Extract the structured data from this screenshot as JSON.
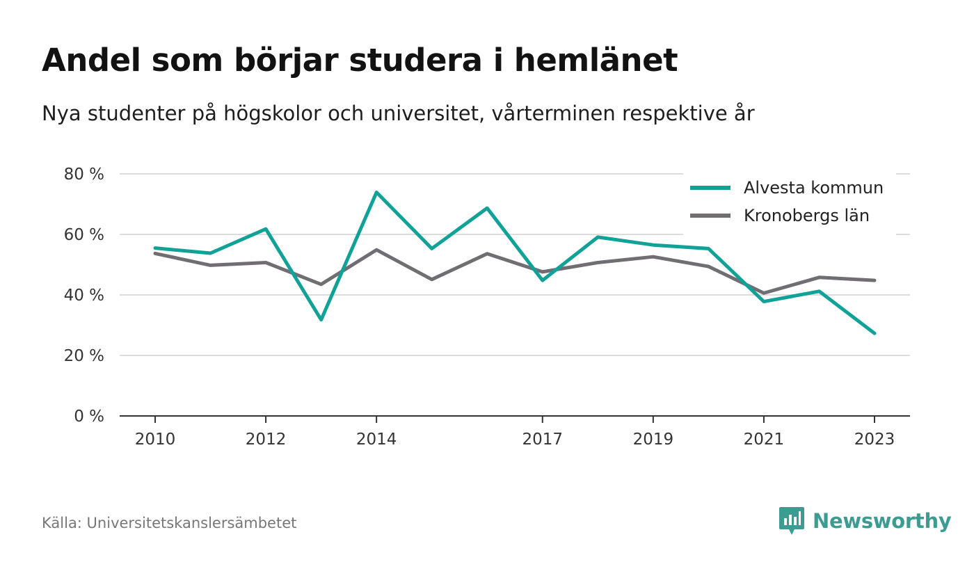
{
  "header": {
    "title": "Andel som börjar studera i hemlänet",
    "subtitle": "Nya studenter på högskolor och universitet, vårterminen respektive år"
  },
  "footer": {
    "source": "Källa: Universitetskanslersämbetet",
    "brand": "Newsworthy",
    "brand_icon": "bar-chart-bubble-icon",
    "brand_color": "#3c9c92"
  },
  "chart_data": {
    "type": "line",
    "x": [
      2010,
      2011,
      2012,
      2013,
      2014,
      2015,
      2016,
      2017,
      2018,
      2019,
      2020,
      2021,
      2022,
      2023
    ],
    "x_ticks": [
      2010,
      2012,
      2014,
      2017,
      2019,
      2021,
      2023
    ],
    "y_ticks": [
      0,
      20,
      40,
      60,
      80
    ],
    "y_tick_suffix": " %",
    "ylim": [
      0,
      80
    ],
    "grid": true,
    "legend_position": "top-right",
    "series": [
      {
        "name": "Alvesta kommun",
        "color": "#10a296",
        "values": [
          55.5,
          53.8,
          61.8,
          31.8,
          73.9,
          55.3,
          68.7,
          44.8,
          59.1,
          56.5,
          55.3,
          37.8,
          41.2,
          27.3
        ]
      },
      {
        "name": "Kronobergs län",
        "color": "#706e73",
        "values": [
          53.7,
          49.8,
          50.7,
          43.5,
          54.9,
          45.1,
          53.6,
          47.6,
          50.7,
          52.6,
          49.4,
          40.6,
          45.8,
          44.8
        ]
      }
    ]
  }
}
